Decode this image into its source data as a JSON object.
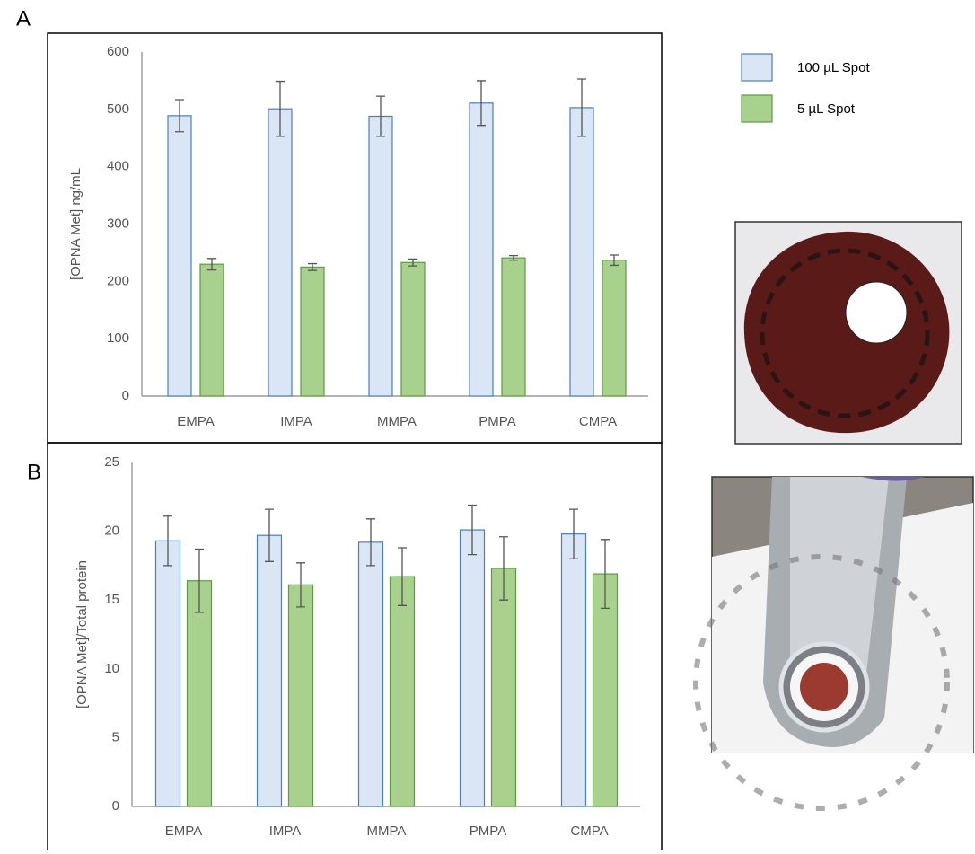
{
  "chart_data": [
    {
      "type": "bar",
      "panel_label": "A",
      "y_label": "[OPNA Met] ng/mL",
      "categories": [
        "EMPA",
        "IMPA",
        "MMPA",
        "PMPA",
        "CMPA"
      ],
      "series": [
        {
          "name": "100 µL Spot",
          "color": "#dae6f5",
          "values": [
            489,
            501,
            488,
            511,
            503
          ],
          "errors": [
            28,
            48,
            35,
            39,
            50
          ]
        },
        {
          "name": "5 µL Spot",
          "color": "#a9d18e",
          "values": [
            230,
            225,
            233,
            241,
            237
          ],
          "errors": [
            10,
            6,
            6,
            4,
            9
          ]
        }
      ],
      "ylim": [
        0,
        600
      ],
      "yticks": [
        0,
        100,
        200,
        300,
        400,
        500,
        600
      ],
      "legend": "right"
    },
    {
      "type": "bar",
      "panel_label": "B",
      "y_label": "[OPNA Met]/Total protein",
      "categories": [
        "EMPA",
        "IMPA",
        "MMPA",
        "PMPA",
        "CMPA"
      ],
      "series": [
        {
          "color": "#dae6f5",
          "values": [
            19.3,
            19.7,
            19.2,
            20.1,
            19.8
          ],
          "errors": [
            1.8,
            1.9,
            1.7,
            1.8,
            1.8
          ]
        },
        {
          "color": "#a9d18e",
          "values": [
            16.4,
            16.1,
            16.7,
            17.3,
            16.9
          ],
          "errors": [
            2.3,
            1.6,
            2.1,
            2.3,
            2.5
          ]
        }
      ],
      "ylim": [
        0,
        25
      ],
      "yticks": [
        0,
        5,
        10,
        15,
        20,
        25
      ]
    }
  ]
}
